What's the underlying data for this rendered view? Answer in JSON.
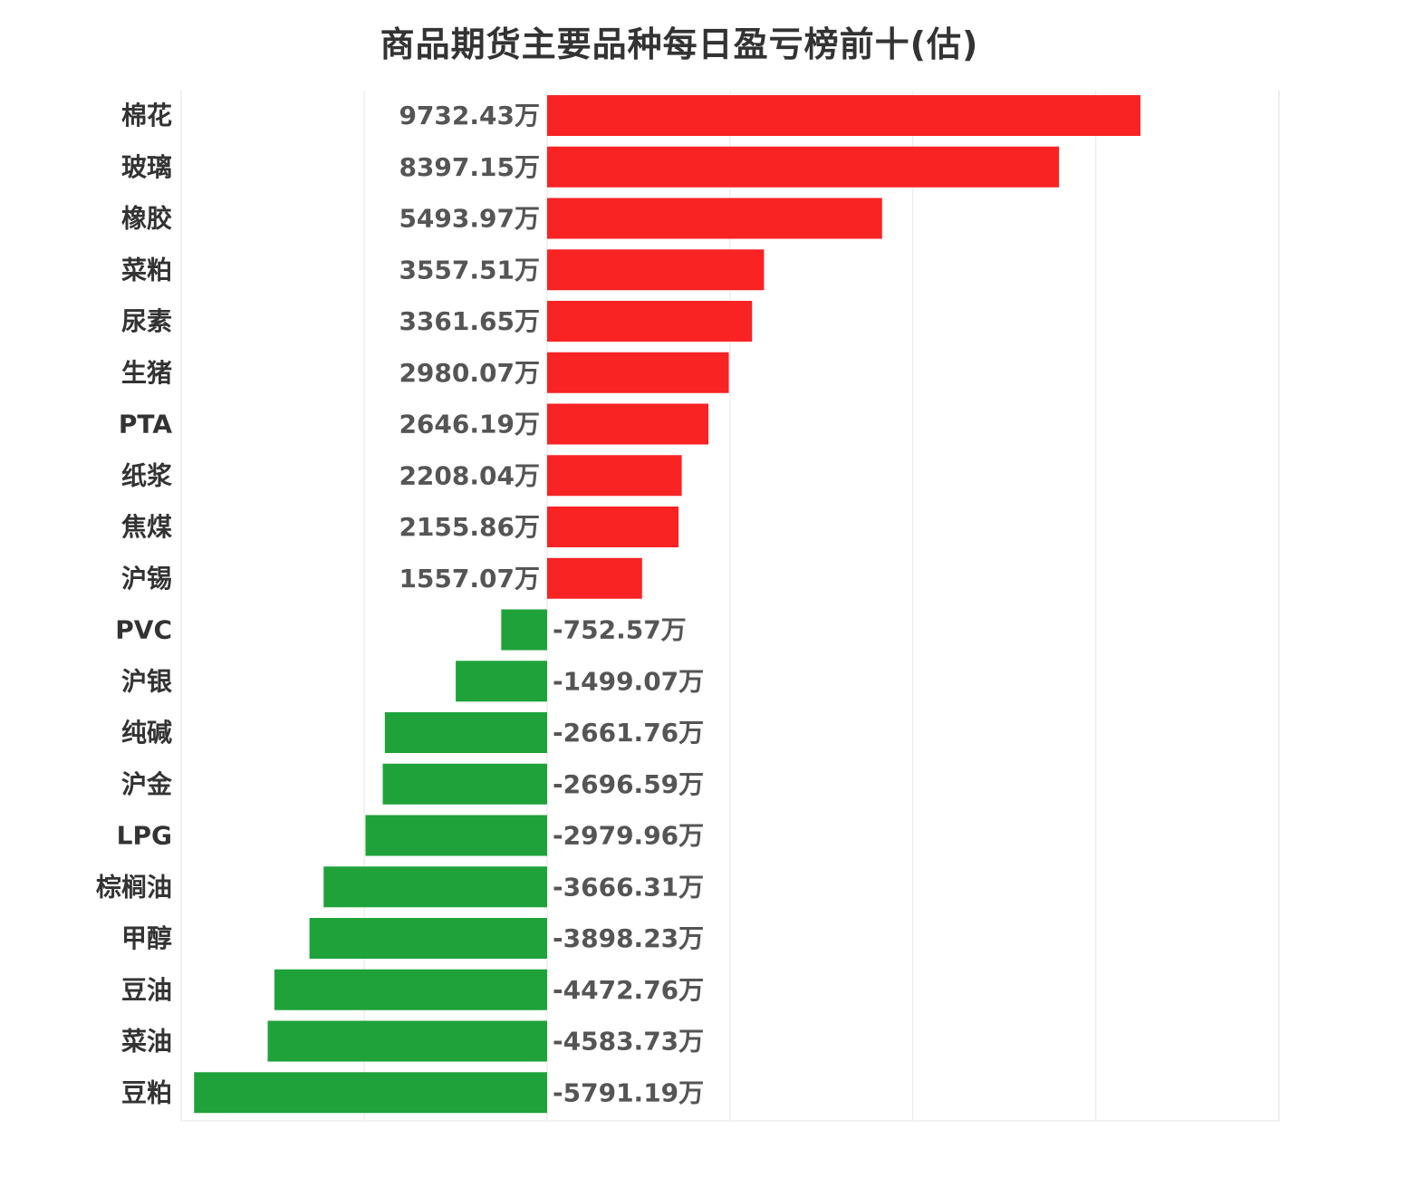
{
  "chart_data": {
    "type": "bar",
    "orientation": "horizontal",
    "title": "商品期货主要品种每日盈亏榜前十(估)",
    "xlabel": "",
    "ylabel": "",
    "unit_suffix": "万",
    "xlim": [
      -6000,
      20000
    ],
    "grid": true,
    "legend": "none",
    "colors": {
      "positive": "#f92323",
      "negative": "#1fa23a",
      "grid": "#e6e6e6"
    },
    "categories": [
      "棉花",
      "玻璃",
      "橡胶",
      "菜粕",
      "尿素",
      "生猪",
      "PTA",
      "纸浆",
      "焦煤",
      "沪锡",
      "PVC",
      "沪银",
      "纯碱",
      "沪金",
      "LPG",
      "棕榈油",
      "甲醇",
      "豆油",
      "菜油",
      "豆粕"
    ],
    "values": [
      9732.43,
      8397.15,
      5493.97,
      3557.51,
      3361.65,
      2980.07,
      2646.19,
      2208.04,
      2155.86,
      1557.07,
      -752.57,
      -1499.07,
      -2661.76,
      -2696.59,
      -2979.96,
      -3666.31,
      -3898.23,
      -4472.76,
      -4583.73,
      -5791.19
    ]
  }
}
